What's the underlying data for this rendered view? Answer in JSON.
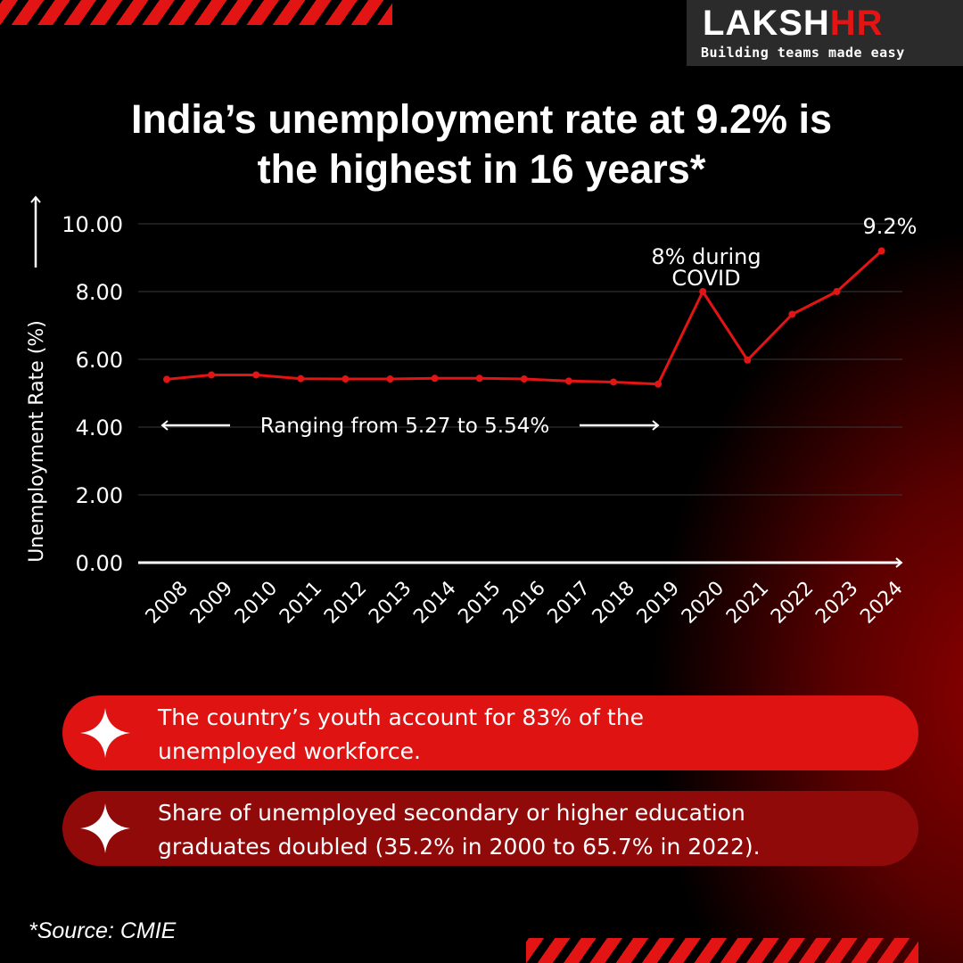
{
  "brand": {
    "name_main": "LAKSH",
    "name_accent": "HR",
    "tagline": "Building teams made easy",
    "accent_color": "#e31414"
  },
  "title_line1": "India’s unemployment rate at 9.2% is",
  "title_line2": "the highest in 16 years*",
  "chart_data": {
    "type": "line",
    "x": [
      "2008",
      "2009",
      "2010",
      "2011",
      "2012",
      "2013",
      "2014",
      "2015",
      "2016",
      "2017",
      "2018",
      "2019",
      "2020",
      "2021",
      "2022",
      "2023",
      "2024"
    ],
    "series": [
      {
        "values": [
          5.41,
          5.54,
          5.54,
          5.43,
          5.42,
          5.42,
          5.44,
          5.44,
          5.42,
          5.36,
          5.33,
          5.27,
          8.0,
          5.98,
          7.33,
          8.0,
          9.2
        ],
        "color": "#e31414"
      }
    ],
    "ylabel": "Unemployment Rate (%)",
    "ylim": [
      0,
      10
    ],
    "yticks": [
      "0.00",
      "2.00",
      "4.00",
      "6.00",
      "8.00",
      "10.00"
    ],
    "annotations": {
      "range_note": "Ranging from 5.27 to 5.54%",
      "covid_line1": "8% during",
      "covid_line2": "COVID",
      "latest": "9.2%"
    },
    "grid": true
  },
  "callouts": [
    {
      "line1": "The country’s youth account for 83% of the",
      "line2": "unemployed workforce.",
      "icon": "sparkle-icon"
    },
    {
      "line1": "Share of unemployed secondary or higher education",
      "line2": "graduates doubled (35.2% in 2000 to 65.7% in 2022).",
      "icon": "sparkle-icon"
    }
  ],
  "source": "*Source: CMIE"
}
